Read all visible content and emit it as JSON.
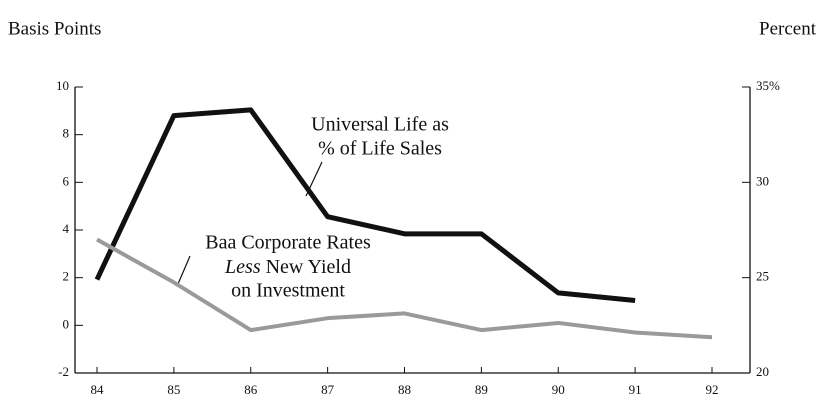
{
  "chart_data": {
    "type": "line",
    "y_label": "Basis Points",
    "y2_label": "Percent",
    "categories": [
      "84",
      "85",
      "86",
      "87",
      "88",
      "89",
      "90",
      "91",
      "92"
    ],
    "series": [
      {
        "color": "#111111",
        "axis": "y2",
        "values": [
          24.9,
          33.5,
          33.8,
          28.2,
          27.3,
          27.3,
          24.2,
          23.8,
          null
        ]
      },
      {
        "color": "#9a9a9a",
        "values": [
          3.6,
          1.8,
          -0.2,
          0.3,
          0.5,
          -0.2,
          0.1,
          -0.3,
          -0.5
        ]
      }
    ],
    "annotations": [
      {
        "lines": [
          "Universal Life as",
          "% of Life Sales"
        ]
      },
      {
        "lines": [
          "Baa Corporate Rates",
          "Less",
          "New Yield",
          "on Investment"
        ]
      }
    ],
    "ylim": [
      -2,
      10
    ],
    "yticks": [
      -2,
      0,
      2,
      4,
      6,
      8,
      10
    ],
    "y2lim": [
      20,
      35
    ],
    "y2ticks": [
      20,
      25,
      30,
      {
        "value": 35,
        "label": "35%"
      }
    ]
  }
}
